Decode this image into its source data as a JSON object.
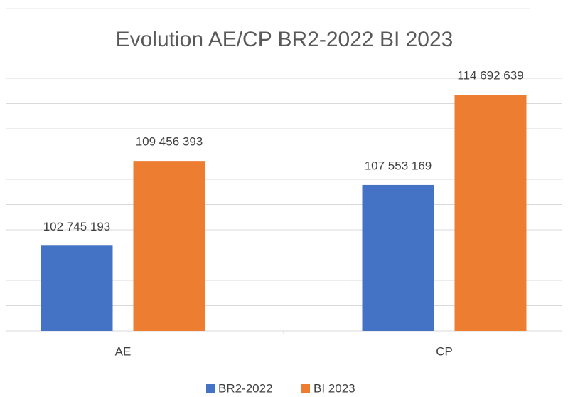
{
  "chart_data": {
    "type": "bar",
    "title": "Evolution AE/CP BR2-2022 BI 2023",
    "categories": [
      "AE",
      "CP"
    ],
    "series": [
      {
        "name": "BR2-2022",
        "color": "#4472c4",
        "values": [
          102745193,
          107553169
        ],
        "value_labels": [
          "102 745 193",
          "107 553 169"
        ]
      },
      {
        "name": "BI 2023",
        "color": "#ed7d31",
        "values": [
          109456393,
          114692639
        ],
        "value_labels": [
          "109 456 393",
          "114 692 639"
        ]
      }
    ],
    "ylim": [
      96000000,
      116000000
    ],
    "yticks": [
      96000000,
      98000000,
      100000000,
      102000000,
      104000000,
      106000000,
      108000000,
      110000000,
      112000000,
      114000000,
      116000000
    ],
    "grid": true,
    "legend": "bottom"
  }
}
